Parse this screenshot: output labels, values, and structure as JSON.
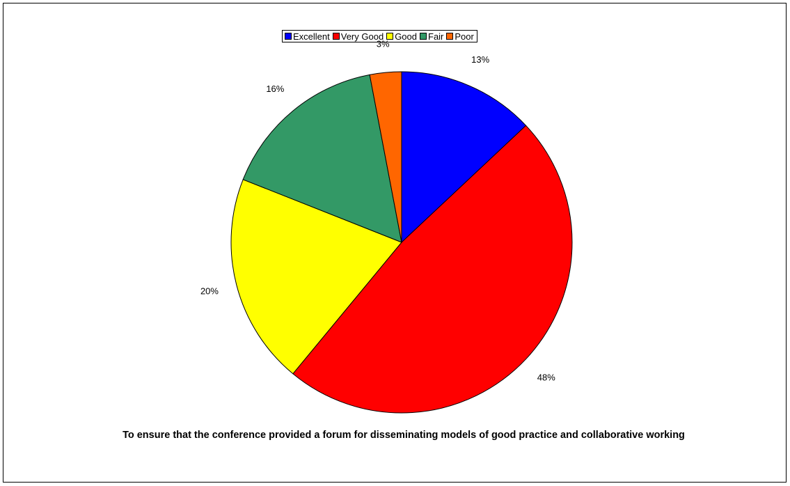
{
  "chart_data": {
    "type": "pie",
    "title": "To ensure that the conference provided a forum for disseminating models of good practice and collaborative working",
    "legend_position": "top",
    "slices": [
      {
        "name": "Excellent",
        "value": 13,
        "label": "13%",
        "color": "#0000ff"
      },
      {
        "name": "Very Good",
        "value": 48,
        "label": "48%",
        "color": "#ff0000"
      },
      {
        "name": "Good",
        "value": 20,
        "label": "20%",
        "color": "#ffff00"
      },
      {
        "name": "Fair",
        "value": 16,
        "label": "16%",
        "color": "#339966"
      },
      {
        "name": "Poor",
        "value": 3,
        "label": "3%",
        "color": "#ff6600"
      }
    ]
  }
}
